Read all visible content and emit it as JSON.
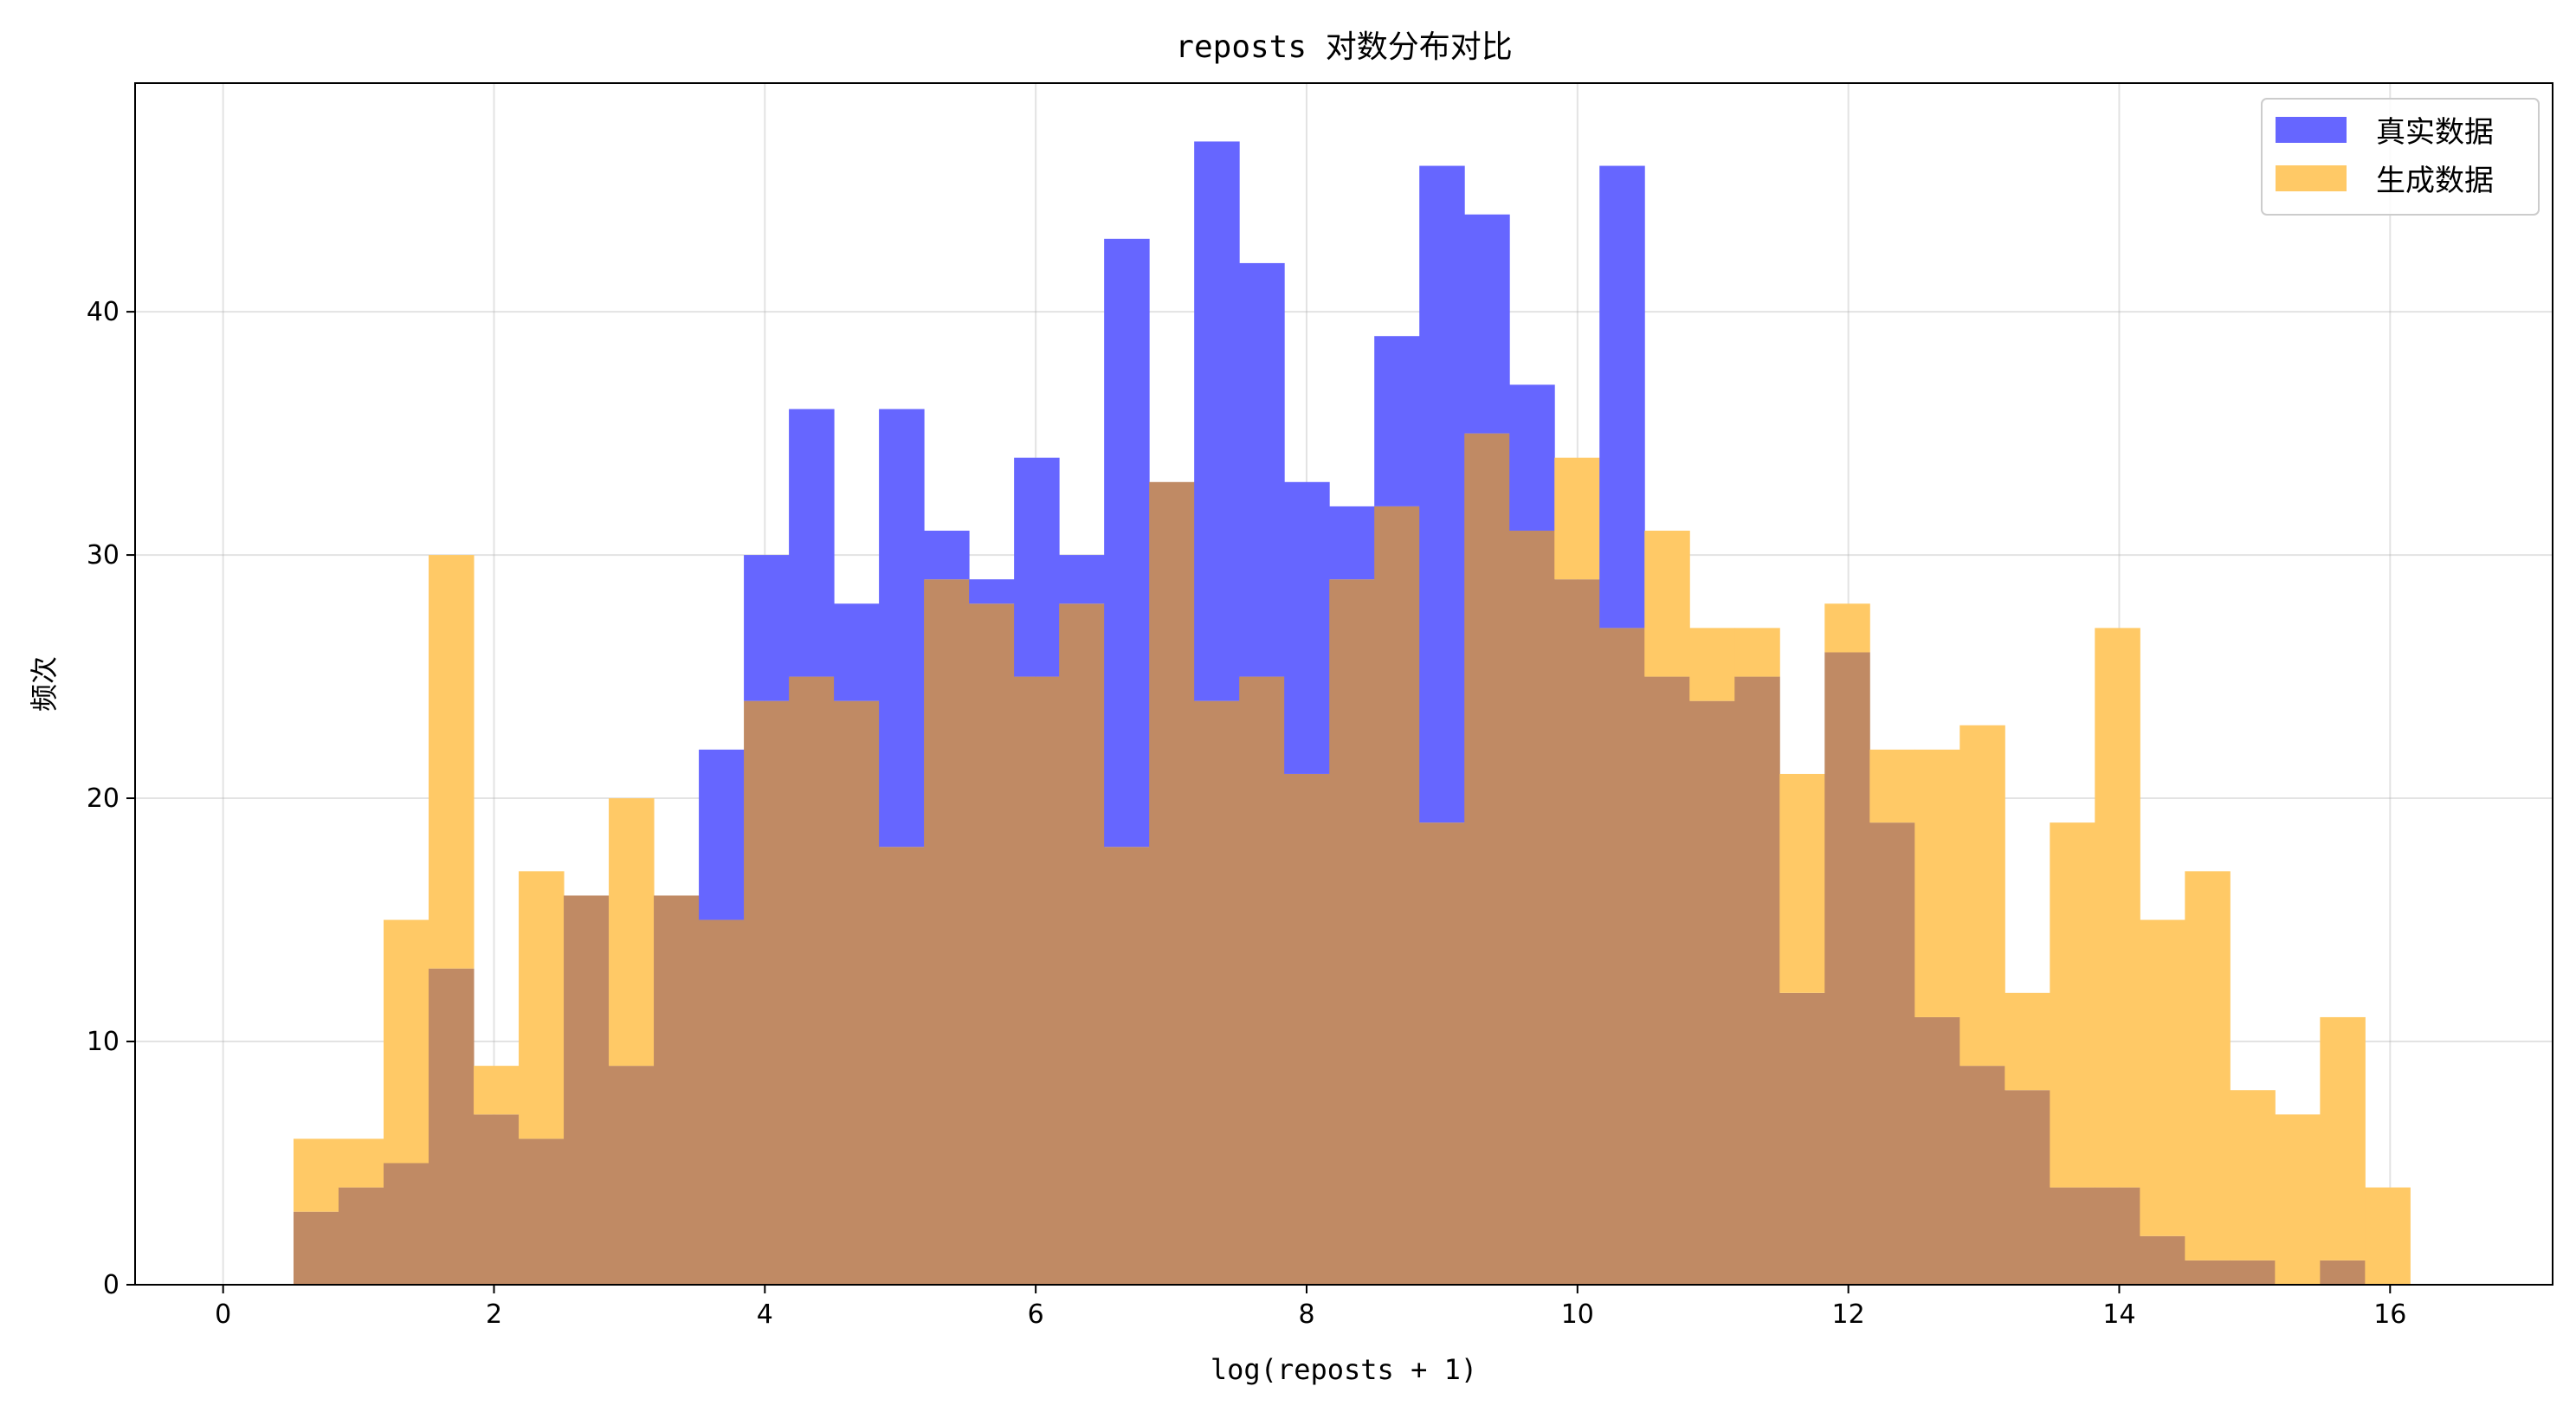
{
  "chart_data": {
    "type": "histogram",
    "title": "reposts 对数分布对比",
    "xlabel": "log(reposts + 1)",
    "ylabel": "频次",
    "xlim": [
      -0.65,
      17.2
    ],
    "ylim": [
      0,
      49.4
    ],
    "xticks": [
      0,
      2,
      4,
      6,
      8,
      10,
      12,
      14,
      16
    ],
    "yticks": [
      0,
      10,
      20,
      30,
      40
    ],
    "grid": true,
    "legend_position": "top-right",
    "bin_start": 0.52,
    "bin_width": 0.3325,
    "series": [
      {
        "name": "真实数据",
        "color": "#6666ff",
        "values": [
          3,
          4,
          5,
          13,
          7,
          6,
          16,
          9,
          16,
          22,
          30,
          36,
          28,
          36,
          31,
          29,
          34,
          30,
          43,
          33,
          47,
          42,
          33,
          32,
          39,
          46,
          44,
          37,
          29,
          46,
          25,
          24,
          25,
          12,
          26,
          19,
          11,
          9,
          8,
          4,
          4,
          2,
          1,
          1,
          0,
          1,
          0
        ]
      },
      {
        "name": "生成数据",
        "color": "#ffc966",
        "values": [
          6,
          6,
          15,
          30,
          9,
          17,
          16,
          20,
          16,
          15,
          24,
          25,
          24,
          18,
          29,
          28,
          25,
          28,
          18,
          33,
          24,
          25,
          21,
          29,
          32,
          19,
          35,
          31,
          34,
          27,
          31,
          27,
          27,
          21,
          28,
          22,
          22,
          23,
          12,
          19,
          27,
          15,
          17,
          8,
          7,
          11,
          4
        ]
      }
    ],
    "overlap_color": "#c08a64"
  }
}
